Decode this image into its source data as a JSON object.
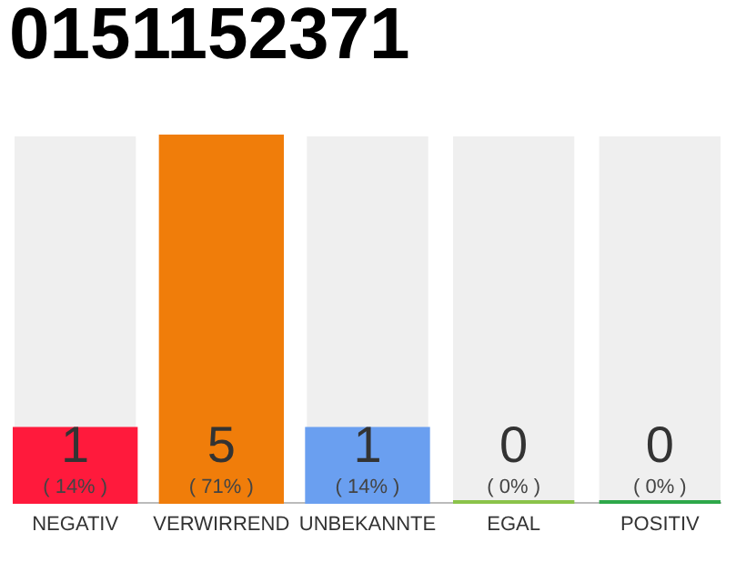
{
  "chart_data": {
    "type": "bar",
    "title": "0151152371",
    "categories": [
      "NEGATIV",
      "VERWIRREND",
      "UNBEKANNTE",
      "EGAL",
      "POSITIV"
    ],
    "values": [
      1,
      5,
      1,
      0,
      0
    ],
    "colors": [
      "#ff1a3c",
      "#f07d0a",
      "#6a9ff0",
      "#8bc34a",
      "#2ea84a"
    ],
    "ylim": [
      0,
      5
    ],
    "tick_labels": "x",
    "grid": false,
    "data_labels": true,
    "annotations": [
      "( 14% )",
      "( 71% )",
      "( 14% )",
      "( 0% )",
      "( 0% )"
    ]
  }
}
